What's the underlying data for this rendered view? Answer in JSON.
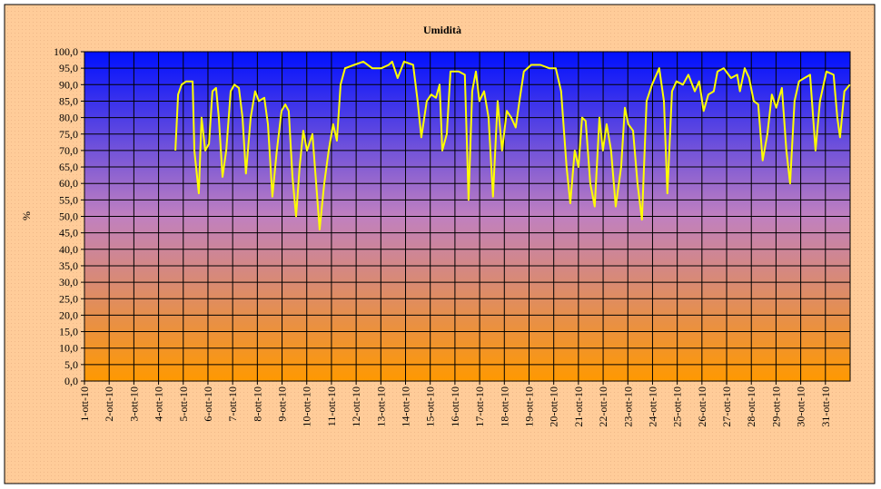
{
  "chart_data": {
    "type": "line",
    "title": "Umidità",
    "y_label": "%",
    "series": [
      {
        "name": "Umidità",
        "color": "#ffff00",
        "x": [
          4.68,
          4.79,
          4.93,
          5.12,
          5.38,
          5.45,
          5.63,
          5.74,
          5.89,
          6.04,
          6.18,
          6.33,
          6.44,
          6.59,
          6.74,
          6.92,
          7.07,
          7.25,
          7.4,
          7.54,
          7.73,
          7.91,
          8.06,
          8.28,
          8.43,
          8.61,
          8.79,
          8.98,
          9.13,
          9.27,
          9.42,
          9.57,
          9.71,
          9.86,
          10.01,
          10.23,
          10.38,
          10.52,
          10.71,
          10.89,
          11.07,
          11.22,
          11.37,
          11.55,
          11.92,
          12.29,
          12.65,
          13.02,
          13.32,
          13.46,
          13.68,
          13.94,
          14.31,
          14.49,
          14.64,
          14.86,
          15.04,
          15.23,
          15.38,
          15.49,
          15.67,
          15.82,
          16.15,
          16.4,
          16.55,
          16.7,
          16.85,
          16.99,
          17.18,
          17.36,
          17.54,
          17.73,
          17.91,
          18.1,
          18.28,
          18.46,
          18.61,
          18.79,
          19.09,
          19.46,
          19.82,
          20.08,
          20.3,
          20.52,
          20.67,
          20.85,
          21.0,
          21.15,
          21.29,
          21.48,
          21.66,
          21.85,
          21.99,
          22.14,
          22.32,
          22.51,
          22.73,
          22.88,
          23.02,
          23.21,
          23.39,
          23.57,
          23.76,
          23.98,
          24.27,
          24.46,
          24.6,
          24.79,
          24.97,
          25.23,
          25.45,
          25.71,
          25.89,
          26.07,
          26.26,
          26.48,
          26.63,
          26.88,
          27.18,
          27.43,
          27.54,
          27.73,
          27.91,
          28.1,
          28.28,
          28.46,
          28.65,
          28.83,
          29.01,
          29.24,
          29.42,
          29.57,
          29.75,
          29.93,
          30.15,
          30.38,
          30.6,
          30.78,
          31.04,
          31.33,
          31.48,
          31.59,
          31.77,
          31.99
        ],
        "values": [
          70,
          87,
          90,
          91,
          91,
          70,
          57,
          80,
          70,
          72,
          88,
          89,
          80,
          62,
          70,
          88,
          90,
          89,
          80,
          63,
          80,
          88,
          85,
          86,
          78,
          56,
          70,
          82,
          84,
          82,
          62,
          50,
          65,
          76,
          70,
          75,
          60,
          46,
          60,
          70,
          78,
          73,
          90,
          95,
          96,
          97,
          95,
          95,
          96,
          97,
          92,
          97,
          96,
          85,
          74,
          85,
          87,
          86,
          90,
          70,
          75,
          94,
          94,
          93,
          55,
          88,
          94,
          85,
          88,
          80,
          56,
          85,
          70,
          82,
          80,
          77,
          85,
          94,
          96,
          96,
          95,
          95,
          88,
          65,
          54,
          70,
          65,
          80,
          79,
          60,
          53,
          80,
          70,
          78,
          70,
          53,
          65,
          83,
          78,
          76,
          60,
          49,
          85,
          90,
          95,
          85,
          57,
          88,
          91,
          90,
          93,
          88,
          91,
          82,
          87,
          88,
          94,
          95,
          92,
          93,
          88,
          95,
          92,
          85,
          84,
          67,
          75,
          87,
          83,
          89,
          70,
          60,
          85,
          91,
          92,
          93,
          70,
          85,
          94,
          93,
          80,
          74,
          88,
          90
        ]
      }
    ],
    "xlim": [
      1,
      32
    ],
    "xticks": [
      {
        "value": 1,
        "label": "1-ott-10"
      },
      {
        "value": 2,
        "label": "2-ott-10"
      },
      {
        "value": 3,
        "label": "3-ott-10"
      },
      {
        "value": 4,
        "label": "4-ott-10"
      },
      {
        "value": 5,
        "label": "5-ott-10"
      },
      {
        "value": 6,
        "label": "6-ott-10"
      },
      {
        "value": 7,
        "label": "7-ott-10"
      },
      {
        "value": 8,
        "label": "8-ott-10"
      },
      {
        "value": 9,
        "label": "9-ott-10"
      },
      {
        "value": 10,
        "label": "10-ott-10"
      },
      {
        "value": 11,
        "label": "11-ott-10"
      },
      {
        "value": 12,
        "label": "12-ott-10"
      },
      {
        "value": 13,
        "label": "13-ott-10"
      },
      {
        "value": 14,
        "label": "14-ott-10"
      },
      {
        "value": 15,
        "label": "15-ott-10"
      },
      {
        "value": 16,
        "label": "16-ott-10"
      },
      {
        "value": 17,
        "label": "17-ott-10"
      },
      {
        "value": 18,
        "label": "18-ott-10"
      },
      {
        "value": 19,
        "label": "19-ott-10"
      },
      {
        "value": 20,
        "label": "20-ott-10"
      },
      {
        "value": 21,
        "label": "21-ott-10"
      },
      {
        "value": 22,
        "label": "22-ott-10"
      },
      {
        "value": 23,
        "label": "23-ott-10"
      },
      {
        "value": 24,
        "label": "24-ott-10"
      },
      {
        "value": 25,
        "label": "25-ott-10"
      },
      {
        "value": 26,
        "label": "26-ott-10"
      },
      {
        "value": 27,
        "label": "27-ott-10"
      },
      {
        "value": 28,
        "label": "28-ott-10"
      },
      {
        "value": 29,
        "label": "29-ott-10"
      },
      {
        "value": 30,
        "label": "30-ott-10"
      },
      {
        "value": 31,
        "label": "31-ott-10"
      }
    ],
    "ylim": [
      0,
      100
    ],
    "yticks": [
      {
        "value": 0,
        "label": "0,0"
      },
      {
        "value": 5,
        "label": "5,0"
      },
      {
        "value": 10,
        "label": "10,0"
      },
      {
        "value": 15,
        "label": "15,0"
      },
      {
        "value": 20,
        "label": "20,0"
      },
      {
        "value": 25,
        "label": "25,0"
      },
      {
        "value": 30,
        "label": "30,0"
      },
      {
        "value": 35,
        "label": "35,0"
      },
      {
        "value": 40,
        "label": "40,0"
      },
      {
        "value": 45,
        "label": "45,0"
      },
      {
        "value": 50,
        "label": "50,0"
      },
      {
        "value": 55,
        "label": "55,0"
      },
      {
        "value": 60,
        "label": "60,0"
      },
      {
        "value": 65,
        "label": "65,0"
      },
      {
        "value": 70,
        "label": "70,0"
      },
      {
        "value": 75,
        "label": "75,0"
      },
      {
        "value": 80,
        "label": "80,0"
      },
      {
        "value": 85,
        "label": "85,0"
      },
      {
        "value": 90,
        "label": "90,0"
      },
      {
        "value": 95,
        "label": "95,0"
      },
      {
        "value": 100,
        "label": "100,0"
      }
    ],
    "grid": true
  }
}
